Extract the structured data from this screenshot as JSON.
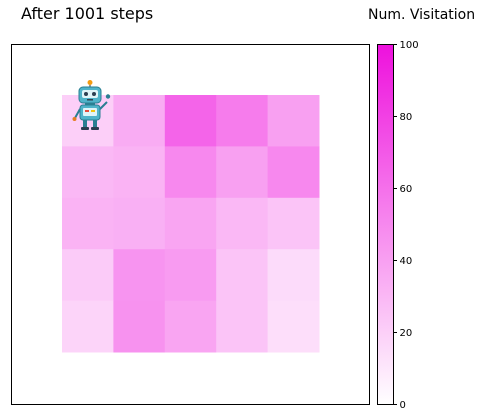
{
  "chart_data": {
    "type": "heatmap",
    "title": "After 1001 steps",
    "grid_rows": 5,
    "grid_cols": 5,
    "values": [
      [
        20,
        35,
        65,
        55,
        40
      ],
      [
        30,
        32,
        50,
        40,
        50
      ],
      [
        32,
        33,
        38,
        30,
        25
      ],
      [
        22,
        45,
        42,
        25,
        15
      ],
      [
        18,
        46,
        38,
        25,
        14
      ]
    ],
    "agent_position": {
      "row": 0,
      "col": 0
    },
    "colorbar": {
      "label": "Num. Visitation",
      "vmin": 0,
      "vmax": 100,
      "ticks": [
        0,
        20,
        40,
        60,
        80,
        100
      ],
      "color_low": "#ffffff",
      "color_high": "#ee11dd"
    }
  },
  "agent_icon": "robot-icon"
}
